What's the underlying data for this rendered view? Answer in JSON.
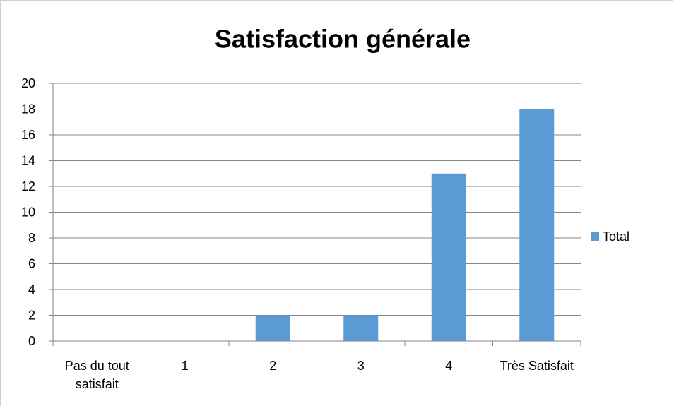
{
  "chart_data": {
    "type": "bar",
    "title": "Satisfaction générale",
    "categories": [
      "Pas du tout satisfait",
      "1",
      "2",
      "3",
      "4",
      "Très Satisfait"
    ],
    "series": [
      {
        "name": "Total",
        "color": "#5b9bd5",
        "values": [
          0,
          0,
          2,
          2,
          13,
          18
        ]
      }
    ],
    "ylim": [
      0,
      20
    ],
    "yticks": [
      0,
      2,
      4,
      6,
      8,
      10,
      12,
      14,
      16,
      18,
      20
    ],
    "grid": true,
    "legend": "right"
  }
}
